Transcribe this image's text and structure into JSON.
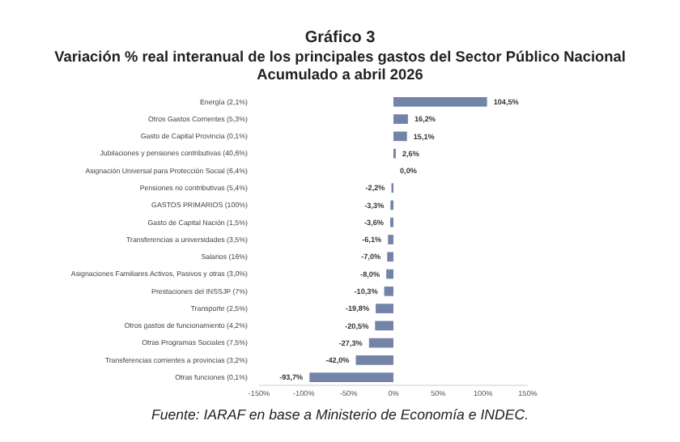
{
  "chart_data": {
    "type": "bar",
    "orientation": "horizontal",
    "title": "Gráfico 3",
    "subtitle": "Variación % real interanual de los principales gastos del Sector Público Nacional\nAcumulado a abril 2026",
    "categories": [
      "Energía (2,1%)",
      "Otros Gastos Corrientes (5,3%)",
      "Gasto de Capital Provincia (0,1%)",
      "Jubilaciones y pensiones contributivas (40,6%)",
      "Asignación Universal para Protección Social (6,4%)",
      "Pensiones no contributivas (5,4%)",
      "GASTOS PRIMARIOS (100%)",
      "Gasto de Capital Nación (1,5%)",
      "Transferencias a universidades (3,5%)",
      "Salarios (16%)",
      "Asignaciones Familiares Activos, Pasivos y otras (3,0%)",
      "Prestaciones del INSSJP (7%)",
      "Transporte (2,5%)",
      "Otros gastos de funcionamiento (4,2%)",
      "Otras Programas Sociales (7,5%)",
      "Transferencias corrientes a provincias (3,2%)",
      "Otras funciones (0,1%)"
    ],
    "values": [
      104.5,
      16.2,
      15.1,
      2.6,
      0.0,
      -2.2,
      -3.3,
      -3.6,
      -6.1,
      -7.0,
      -8.0,
      -10.3,
      -19.8,
      -20.5,
      -27.3,
      -42.0,
      -93.7
    ],
    "value_labels": [
      "104,5%",
      "16,2%",
      "15,1%",
      "2,6%",
      "0,0%",
      "-2,2%",
      "-3,3%",
      "-3,6%",
      "-6,1%",
      "-7,0%",
      "-8,0%",
      "-10,3%",
      "-19,8%",
      "-20,5%",
      "-27,3%",
      "-42,0%",
      "-93,7%"
    ],
    "color": "#7384a8",
    "xlim": [
      -150,
      150
    ],
    "xticks": [
      {
        "value": -150,
        "label": "-150%"
      },
      {
        "value": -100,
        "label": "-100%"
      },
      {
        "value": -50,
        "label": "-50%"
      },
      {
        "value": 0,
        "label": "0%"
      },
      {
        "value": 50,
        "label": "50%"
      },
      {
        "value": 100,
        "label": "100%"
      },
      {
        "value": 150,
        "label": "150%"
      }
    ],
    "annotations": [
      "Fuente: IARAF en base a Ministerio de Economía e INDEC."
    ]
  }
}
